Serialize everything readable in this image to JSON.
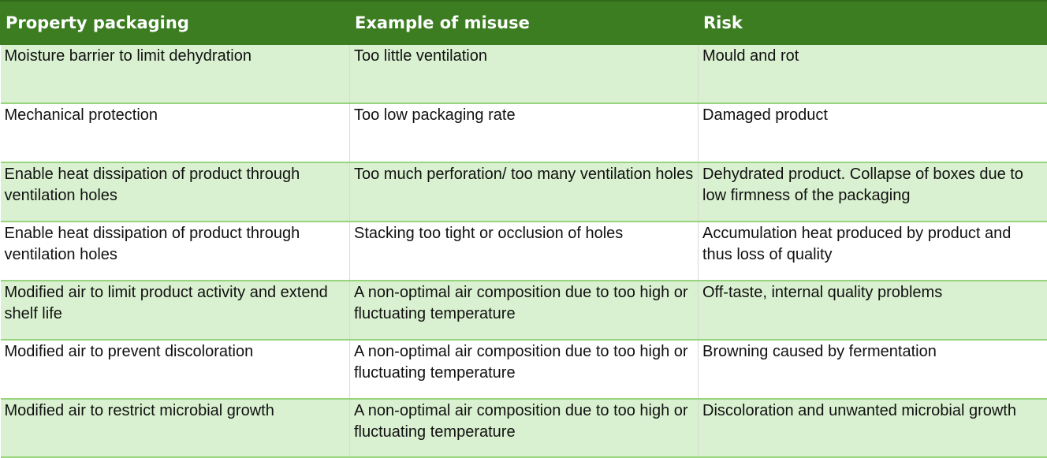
{
  "columns": [
    {
      "label": "Property packaging"
    },
    {
      "label": "Example of misuse"
    },
    {
      "label": "Risk"
    }
  ],
  "rows": [
    {
      "property": "Moisture barrier to limit dehydration",
      "misuse": "Too little ventilation",
      "risk": "Mould and rot"
    },
    {
      "property": "Mechanical protection",
      "misuse": "Too low packaging rate",
      "risk": "Damaged product"
    },
    {
      "property": "Enable heat dissipation of product through ventilation holes",
      "misuse": "Too much perforation/ too many ventilation holes",
      "risk": "Dehydrated product. Collapse of boxes due to low firmness of the packaging"
    },
    {
      "property": "Enable heat dissipation of product through ventilation holes",
      "misuse": "Stacking too tight or occlusion of holes",
      "risk": "Accumulation heat produced by product and thus loss of quality"
    },
    {
      "property": "Modified air to limit product activity and extend shelf life",
      "misuse": "A non-optimal air composition due to too high or fluctuating temperature",
      "risk": "Off-taste, internal quality problems"
    },
    {
      "property": "Modified air to prevent discoloration",
      "misuse": "A non-optimal air composition due to too high or fluctuating temperature",
      "risk": "Browning caused by fermentation"
    },
    {
      "property": "Modified air to restrict microbial growth",
      "misuse": "A non-optimal air composition due to too high or fluctuating temperature",
      "risk": "Discoloration and unwanted microbial growth"
    }
  ],
  "colors": {
    "header_bg": "#3c7d22",
    "header_text": "#ffffff",
    "row_shade": "#d9f1d0",
    "row_plain": "#ffffff",
    "row_border": "#98d47e"
  }
}
